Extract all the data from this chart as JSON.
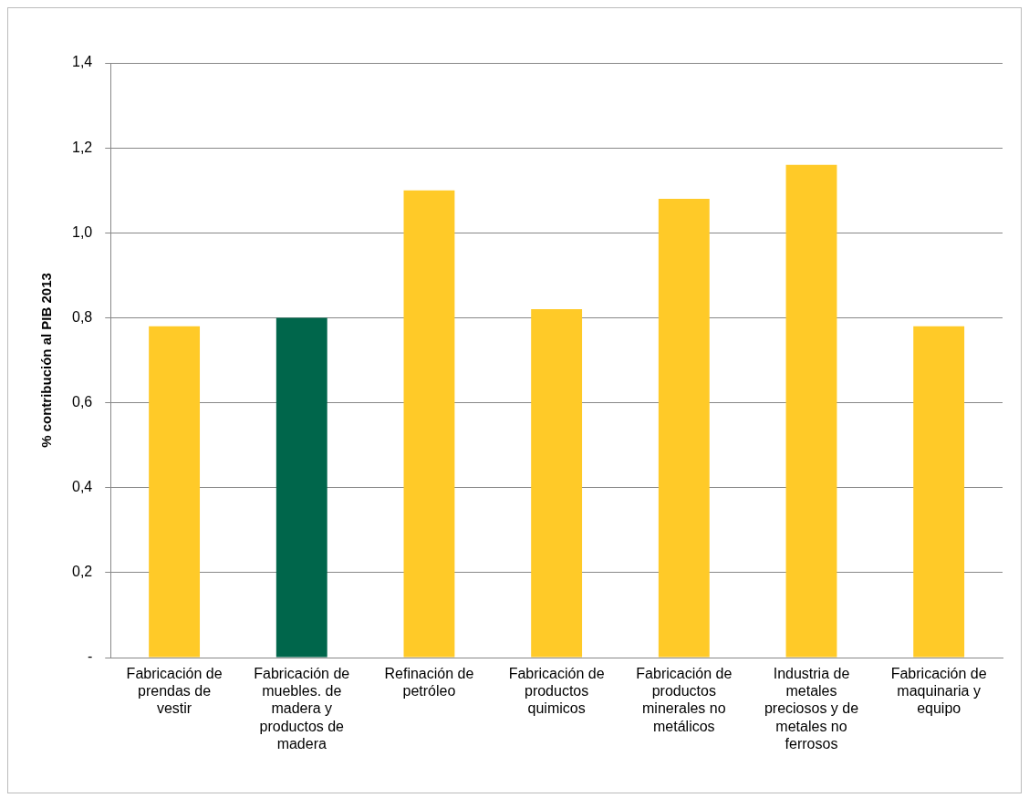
{
  "chart_data": {
    "type": "bar",
    "ylabel": "% contribución al PIB 2013",
    "categories": [
      "Fabricación de prendas de vestir",
      "Fabricación de muebles. de madera y productos de madera",
      "Refinación de petróleo",
      "Fabricación de productos quimicos",
      "Fabricación de productos minerales no metálicos",
      "Industria de metales preciosos y de metales no ferrosos",
      "Fabricación de maquinaria y equipo"
    ],
    "values": [
      0.78,
      0.8,
      1.1,
      0.82,
      1.08,
      1.16,
      0.78
    ],
    "colors": [
      "#ffca28",
      "#00664b",
      "#ffca28",
      "#ffca28",
      "#ffca28",
      "#ffca28",
      "#ffca28"
    ],
    "ylim": [
      0,
      1.4
    ],
    "yticks": [
      {
        "value": 0,
        "label": "-"
      },
      {
        "value": 0.2,
        "label": "0,2"
      },
      {
        "value": 0.4,
        "label": "0,4"
      },
      {
        "value": 0.6,
        "label": "0,6"
      },
      {
        "value": 0.8,
        "label": "0,8"
      },
      {
        "value": 1.0,
        "label": "1,0"
      },
      {
        "value": 1.2,
        "label": "1,2"
      },
      {
        "value": 1.4,
        "label": "1,4"
      }
    ],
    "grid": "y",
    "legend": false
  }
}
